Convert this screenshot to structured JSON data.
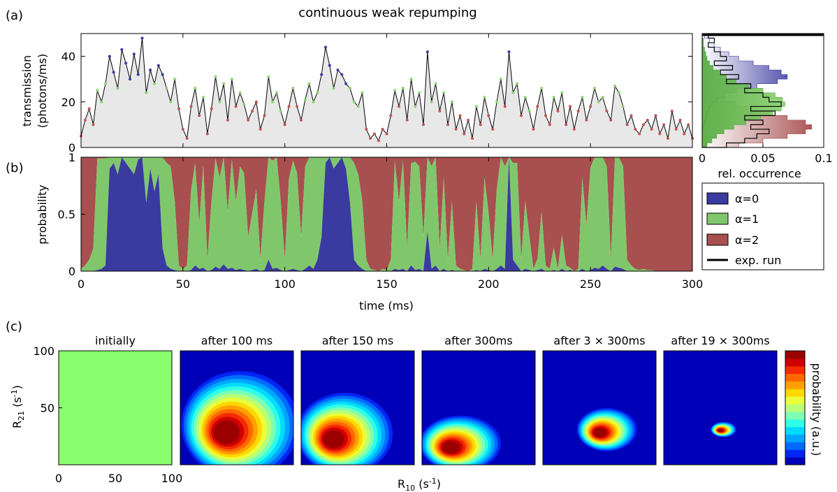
{
  "title": "continuous weak repumping",
  "chart_data": [
    {
      "panel": "(a)",
      "type": "area",
      "ylabel_line1": "transmission",
      "ylabel_line2": "(photons/ms)",
      "xlim": [
        0,
        300
      ],
      "ylim": [
        0,
        50
      ],
      "yticks": [
        0,
        20,
        40
      ],
      "xticks": [
        0,
        50,
        100,
        150,
        200,
        250,
        300
      ],
      "point_colors": {
        "alpha0": "#3a3aa0",
        "alpha1": "#8ad16d",
        "alpha2": "#c45353"
      },
      "fill_color": "#e8e8e8",
      "x": [
        0,
        2,
        4,
        6,
        8,
        10,
        12,
        14,
        16,
        18,
        20,
        22,
        24,
        26,
        28,
        30,
        32,
        34,
        36,
        38,
        40,
        42,
        44,
        46,
        48,
        50,
        52,
        54,
        56,
        58,
        60,
        62,
        64,
        66,
        68,
        70,
        72,
        74,
        76,
        78,
        80,
        82,
        84,
        86,
        88,
        90,
        92,
        94,
        96,
        98,
        100,
        102,
        104,
        106,
        108,
        110,
        112,
        114,
        116,
        118,
        120,
        122,
        124,
        126,
        128,
        130,
        132,
        134,
        136,
        138,
        140,
        142,
        144,
        146,
        148,
        150,
        152,
        154,
        156,
        158,
        160,
        162,
        164,
        166,
        168,
        170,
        172,
        174,
        176,
        178,
        180,
        182,
        184,
        186,
        188,
        190,
        192,
        194,
        196,
        198,
        200,
        202,
        204,
        206,
        208,
        210,
        212,
        214,
        216,
        218,
        220,
        222,
        224,
        226,
        228,
        230,
        232,
        234,
        236,
        238,
        240,
        242,
        244,
        246,
        248,
        250,
        252,
        254,
        256,
        258,
        260,
        262,
        264,
        266,
        268,
        270,
        272,
        274,
        276,
        278,
        280,
        282,
        284,
        286,
        288,
        290,
        292,
        294,
        296,
        298,
        300
      ],
      "y": [
        5,
        12,
        17,
        10,
        25,
        20,
        28,
        40,
        33,
        26,
        43,
        37,
        30,
        41,
        32,
        48,
        24,
        34,
        28,
        36,
        32,
        26,
        20,
        30,
        17,
        8,
        4,
        18,
        26,
        14,
        22,
        6,
        17,
        31,
        20,
        28,
        12,
        30,
        18,
        24,
        19,
        12,
        16,
        20,
        8,
        14,
        31,
        20,
        24,
        16,
        10,
        18,
        26,
        18,
        12,
        21,
        28,
        20,
        24,
        32,
        44,
        36,
        26,
        34,
        32,
        28,
        26,
        20,
        18,
        24,
        8,
        4,
        6,
        3,
        8,
        6,
        14,
        25,
        18,
        26,
        12,
        30,
        18,
        24,
        10,
        42,
        20,
        28,
        16,
        24,
        10,
        20,
        8,
        14,
        6,
        12,
        4,
        18,
        10,
        22,
        14,
        8,
        20,
        30,
        18,
        42,
        24,
        28,
        14,
        22,
        16,
        8,
        18,
        26,
        14,
        10,
        22,
        16,
        24,
        10,
        18,
        8,
        16,
        22,
        12,
        18,
        26,
        20,
        22,
        16,
        12,
        27,
        24,
        18,
        10,
        14,
        8,
        6,
        10,
        12,
        8,
        14,
        6,
        10,
        4,
        16,
        8,
        12,
        6,
        10,
        4
      ],
      "s": [
        2,
        2,
        2,
        2,
        1,
        1,
        1,
        0,
        0,
        1,
        0,
        0,
        0,
        0,
        0,
        0,
        1,
        0,
        1,
        0,
        0,
        1,
        1,
        1,
        2,
        2,
        2,
        2,
        1,
        2,
        1,
        2,
        2,
        1,
        1,
        1,
        2,
        1,
        2,
        1,
        1,
        2,
        2,
        2,
        2,
        2,
        1,
        1,
        1,
        1,
        2,
        2,
        1,
        2,
        2,
        1,
        1,
        1,
        1,
        0,
        0,
        0,
        1,
        0,
        0,
        0,
        1,
        1,
        1,
        1,
        2,
        2,
        2,
        2,
        2,
        2,
        2,
        1,
        2,
        1,
        2,
        1,
        1,
        1,
        2,
        0,
        1,
        1,
        2,
        1,
        2,
        1,
        2,
        2,
        2,
        2,
        2,
        1,
        2,
        1,
        2,
        2,
        1,
        1,
        2,
        0,
        1,
        1,
        2,
        1,
        1,
        2,
        2,
        1,
        2,
        2,
        1,
        2,
        1,
        2,
        2,
        2,
        2,
        1,
        2,
        2,
        1,
        1,
        1,
        2,
        2,
        1,
        1,
        1,
        2,
        2,
        2,
        2,
        2,
        2,
        2,
        2,
        2,
        2,
        2,
        2,
        2,
        2,
        2,
        2,
        2
      ]
    },
    {
      "panel": "(a) inset",
      "type": "histogram",
      "xlabel": "rel. occurrence",
      "xlim": [
        0,
        0.1
      ],
      "xticks": [
        "0",
        "0.05",
        "0.1"
      ],
      "ylim": [
        0,
        50
      ],
      "bin_centers": [
        1,
        3,
        5,
        7,
        9,
        11,
        13,
        15,
        17,
        19,
        21,
        23,
        25,
        27,
        29,
        31,
        33,
        35,
        37,
        39,
        41,
        43,
        45,
        47,
        49
      ],
      "alpha0": [
        0,
        0,
        0,
        0,
        0.001,
        0.002,
        0.003,
        0.004,
        0.006,
        0.008,
        0.012,
        0.018,
        0.028,
        0.045,
        0.062,
        0.07,
        0.065,
        0.055,
        0.042,
        0.03,
        0.022,
        0.015,
        0.01,
        0.006,
        0.002
      ],
      "alpha1": [
        0.004,
        0.008,
        0.012,
        0.018,
        0.026,
        0.036,
        0.048,
        0.058,
        0.065,
        0.068,
        0.066,
        0.06,
        0.05,
        0.038,
        0.028,
        0.02,
        0.014,
        0.009,
        0.006,
        0.004,
        0.003,
        0.002,
        0.001,
        0.001,
        0
      ],
      "alpha2": [
        0.03,
        0.05,
        0.07,
        0.085,
        0.09,
        0.085,
        0.07,
        0.055,
        0.04,
        0.028,
        0.018,
        0.012,
        0.008,
        0.005,
        0.003,
        0.002,
        0.001,
        0.001,
        0,
        0,
        0,
        0,
        0,
        0,
        0
      ],
      "exp_run": [
        0.02,
        0.035,
        0.045,
        0.055,
        0.04,
        0.05,
        0.035,
        0.06,
        0.04,
        0.065,
        0.055,
        0.05,
        0.035,
        0.04,
        0.02,
        0.03,
        0.015,
        0.025,
        0.01,
        0.02,
        0.015,
        0.01,
        0.005,
        0.01,
        0.005
      ]
    },
    {
      "panel": "(b)",
      "type": "area",
      "stacked": true,
      "xlabel": "time (ms)",
      "ylabel": "probability",
      "xlim": [
        0,
        300
      ],
      "ylim": [
        0,
        1
      ],
      "yticks": [
        "0",
        "0.5",
        "1"
      ],
      "xticks": [
        0,
        50,
        100,
        150,
        200,
        250,
        300
      ],
      "x": [
        0,
        2,
        4,
        6,
        8,
        10,
        12,
        14,
        16,
        18,
        20,
        22,
        24,
        26,
        28,
        30,
        32,
        34,
        36,
        38,
        40,
        42,
        44,
        46,
        48,
        50,
        52,
        54,
        56,
        58,
        60,
        62,
        64,
        66,
        68,
        70,
        72,
        74,
        76,
        78,
        80,
        82,
        84,
        86,
        88,
        90,
        92,
        94,
        96,
        98,
        100,
        102,
        104,
        106,
        108,
        110,
        112,
        114,
        116,
        118,
        120,
        122,
        124,
        126,
        128,
        130,
        132,
        134,
        136,
        138,
        140,
        142,
        144,
        146,
        148,
        150,
        152,
        154,
        156,
        158,
        160,
        162,
        164,
        166,
        168,
        170,
        172,
        174,
        176,
        178,
        180,
        182,
        184,
        186,
        188,
        190,
        192,
        194,
        196,
        198,
        200,
        202,
        204,
        206,
        208,
        210,
        212,
        214,
        216,
        218,
        220,
        222,
        224,
        226,
        228,
        230,
        232,
        234,
        236,
        238,
        240,
        242,
        244,
        246,
        248,
        250,
        252,
        254,
        256,
        258,
        260,
        262,
        264,
        266,
        268,
        270,
        272,
        274,
        276,
        278,
        280,
        282,
        284,
        286,
        288,
        290,
        292,
        294,
        296,
        298,
        300
      ],
      "p0": [
        0,
        0,
        0,
        0,
        0.01,
        0.02,
        0.05,
        0.9,
        0.95,
        0.85,
        1,
        0.95,
        0.9,
        0.85,
        0.98,
        1,
        0.6,
        0.9,
        0.7,
        0.85,
        0.2,
        0.05,
        0.02,
        0.01,
        0,
        0,
        0,
        0.01,
        0.05,
        0.02,
        0.03,
        0,
        0.01,
        0.04,
        0.02,
        0.06,
        0.02,
        0.03,
        0.01,
        0.02,
        0.01,
        0,
        0.01,
        0.02,
        0,
        0.01,
        0.1,
        0.02,
        0.03,
        0.01,
        0,
        0.01,
        0.02,
        0.01,
        0,
        0.02,
        0.05,
        0.02,
        0.1,
        0.3,
        0.95,
        1,
        0.9,
        0.95,
        1,
        0.9,
        0.6,
        0.1,
        0.05,
        0.02,
        0,
        0,
        0,
        0,
        0,
        0,
        0,
        0.02,
        0.01,
        0.02,
        0,
        0.05,
        0.01,
        0.02,
        0,
        0.35,
        0.02,
        0.05,
        0,
        0.02,
        0,
        0.01,
        0,
        0,
        0,
        0,
        0,
        0.01,
        0,
        0.02,
        0.01,
        0,
        0.02,
        0.05,
        0.02,
        1,
        0.1,
        0.05,
        0,
        0.02,
        0.01,
        0,
        0.01,
        0.02,
        0,
        0,
        0.01,
        0,
        0.02,
        0,
        0.01,
        0,
        0,
        0.02,
        0,
        0.01,
        0.03,
        0.02,
        0.05,
        0.02,
        0,
        0.04,
        0.03,
        0.02,
        0,
        0,
        0,
        0,
        0,
        0,
        0,
        0,
        0,
        0,
        0,
        0,
        0,
        0,
        0,
        0,
        0
      ],
      "p1": [
        0.02,
        0.05,
        0.1,
        0.2,
        0.98,
        0.97,
        0.94,
        0.1,
        0.05,
        0.15,
        0,
        0.05,
        0.1,
        0.15,
        0.02,
        0,
        0.4,
        0.1,
        0.3,
        0.15,
        0.8,
        0.9,
        0.9,
        0.6,
        0.05,
        0.02,
        0.05,
        0.7,
        0.9,
        0.4,
        0.9,
        0.1,
        0.6,
        0.95,
        0.8,
        0.94,
        0.5,
        0.95,
        0.6,
        0.9,
        0.85,
        0.3,
        0.5,
        0.7,
        0.1,
        0.6,
        0.9,
        0.95,
        0.97,
        0.6,
        0.1,
        0.8,
        0.95,
        0.85,
        0.3,
        0.9,
        0.95,
        0.98,
        0.9,
        0.7,
        0.05,
        0,
        0.1,
        0.05,
        0,
        0.1,
        0.4,
        0.85,
        0.8,
        0.6,
        0.1,
        0.02,
        0.01,
        0,
        0.02,
        0.01,
        0.1,
        0.95,
        0.6,
        0.95,
        0.2,
        0.9,
        0.95,
        0.9,
        0.3,
        0.65,
        0.9,
        0.95,
        0.2,
        0.8,
        0.1,
        0.6,
        0.05,
        0.02,
        0.01,
        0,
        0.02,
        0.6,
        0.1,
        0.8,
        0.5,
        0.1,
        0.7,
        0.95,
        0.9,
        0,
        0.85,
        0.9,
        0.1,
        0.6,
        0.3,
        0.02,
        0.1,
        0.5,
        0.05,
        0.02,
        0.2,
        0.02,
        0.3,
        0.05,
        0.02,
        0,
        0.02,
        0.8,
        0.4,
        0.9,
        0.97,
        0.98,
        0.95,
        0.9,
        0.1,
        0.96,
        0.97,
        0.9,
        0.1,
        0.05,
        0.02,
        0.01,
        0.02,
        0.01,
        0.01,
        0,
        0,
        0,
        0,
        0,
        0,
        0,
        0,
        0,
        0
      ],
      "p2": [
        0.98,
        0.95,
        0.9,
        0.8,
        0.01,
        0.01,
        0.01,
        0,
        0,
        0,
        0,
        0,
        0,
        0,
        0,
        0,
        0,
        0,
        0,
        0,
        0,
        0.05,
        0.08,
        0.39,
        0.95,
        0.98,
        0.95,
        0.29,
        0.05,
        0.58,
        0.07,
        0.9,
        0.39,
        0.01,
        0.18,
        0,
        0.48,
        0.02,
        0.39,
        0.08,
        0.14,
        0.7,
        0.49,
        0.28,
        0.9,
        0.39,
        0,
        0.03,
        0,
        0.39,
        0.9,
        0.19,
        0.03,
        0.14,
        0.7,
        0.08,
        0,
        0,
        0,
        0,
        0,
        0,
        0,
        0,
        0,
        0,
        0,
        0.05,
        0.15,
        0.38,
        0.9,
        0.98,
        0.99,
        1,
        0.98,
        0.99,
        0.9,
        0.03,
        0.39,
        0.03,
        0.8,
        0.05,
        0.04,
        0.08,
        0.7,
        0,
        0.08,
        0,
        0.8,
        0.18,
        0.9,
        0.39,
        0.95,
        0.98,
        0.99,
        1,
        0.98,
        0.39,
        0.9,
        0.18,
        0.49,
        0.9,
        0.28,
        0,
        0.08,
        0,
        0.05,
        0.05,
        0.9,
        0.38,
        0.69,
        0.98,
        0.89,
        0.48,
        0.95,
        0.98,
        0.79,
        0.98,
        0.68,
        0.95,
        0.97,
        1,
        0.98,
        0.18,
        0.6,
        0.09,
        0,
        0,
        0,
        0.05,
        0.88,
        0,
        0,
        0.08,
        0.9,
        0.95,
        0.98,
        0.99,
        0.98,
        0.99,
        0.99,
        1,
        1,
        1,
        1,
        1,
        1,
        1,
        1,
        1,
        1
      ]
    },
    {
      "panel": "(c)",
      "type": "heatmap",
      "xlabel": "R",
      "xlabel_sub": "10",
      "xlabel_unit": " (s",
      "xlabel_sup": "-1",
      "ylabel": "R",
      "ylabel_sub": "21",
      "ylabel_unit": " (s",
      "ylabel_sup": "-1",
      "colorbar_label": "probability (a.u.)",
      "xlim": [
        0,
        100
      ],
      "ylim": [
        0,
        100
      ],
      "xticks": [
        "0",
        "50",
        "100"
      ],
      "yticks": [
        "50",
        "100"
      ],
      "panels": [
        {
          "title": "initially",
          "uniform": true,
          "peak_x": 50,
          "peak_y": 50,
          "width_x": 0,
          "width_y": 0
        },
        {
          "title": "after 100 ms",
          "uniform": false,
          "peak_x": 40,
          "peak_y": 28,
          "width_x": 55,
          "width_y": 50
        },
        {
          "title": "after 150 ms",
          "uniform": false,
          "peak_x": 28,
          "peak_y": 22,
          "width_x": 45,
          "width_y": 38
        },
        {
          "title": "after 300ms",
          "uniform": false,
          "peak_x": 25,
          "peak_y": 15,
          "width_x": 38,
          "width_y": 26
        },
        {
          "title": "after 3 × 300ms",
          "uniform": false,
          "peak_x": 50,
          "peak_y": 28,
          "width_x": 28,
          "width_y": 20
        },
        {
          "title": "after 19 × 300ms",
          "uniform": false,
          "peak_x": 50,
          "peak_y": 30,
          "width_x": 12,
          "width_y": 7
        }
      ]
    }
  ],
  "legend": {
    "items": [
      {
        "label": "α=0",
        "color": "#3a3aa0"
      },
      {
        "label": "α=1",
        "color": "#80c76c"
      },
      {
        "label": "α=2",
        "color": "#a84f4f"
      },
      {
        "label": "exp. run",
        "color": "#000000"
      }
    ]
  },
  "panel_labels": {
    "a": "(a)",
    "b": "(b)",
    "c": "(c)"
  }
}
